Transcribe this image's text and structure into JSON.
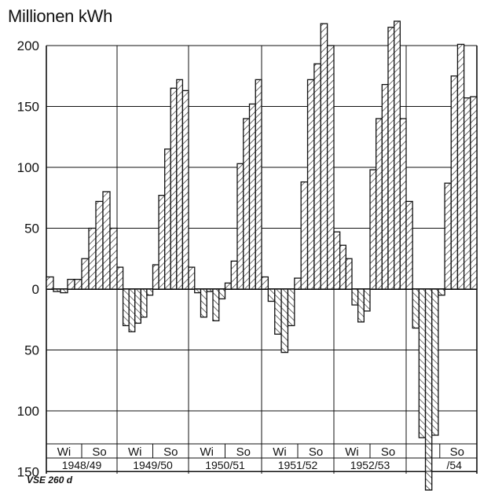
{
  "chart_data": {
    "type": "bar",
    "ylabel": "Millionen kWh",
    "source_note": "VSE 260 d",
    "y_ticks_positive": [
      200,
      150,
      100,
      50,
      0
    ],
    "y_ticks_negative": [
      50,
      100,
      150
    ],
    "ylim": [
      -150,
      200
    ],
    "grid": true,
    "seasons": [
      {
        "wi": "Wi",
        "so": "So",
        "year": "1948/49",
        "values": [
          10,
          -2,
          -3,
          8,
          8,
          25,
          50,
          72,
          80,
          50
        ]
      },
      {
        "wi": "Wi",
        "so": "So",
        "year": "1949/50",
        "values": [
          18,
          -30,
          -35,
          -28,
          -23,
          -5,
          20,
          77,
          115,
          165,
          172,
          163
        ]
      },
      {
        "wi": "Wi",
        "so": "So",
        "year": "1950/51",
        "values": [
          18,
          -3,
          -23,
          -2,
          -26,
          -8,
          5,
          23,
          103,
          140,
          152,
          172
        ]
      },
      {
        "wi": "Wi",
        "so": "So",
        "year": "1951/52",
        "values": [
          10,
          -10,
          -37,
          -52,
          -30,
          9,
          88,
          172,
          185,
          218,
          200
        ]
      },
      {
        "wi": "Wi",
        "so": "So",
        "year": "1952/53",
        "values": [
          47,
          36,
          25,
          -13,
          -27,
          -18,
          98,
          140,
          168,
          215,
          220,
          140
        ]
      },
      {
        "wi": "",
        "so": "So",
        "year": "/54",
        "values": [
          72,
          -32,
          -122,
          -165,
          -120,
          -5,
          87,
          175,
          201,
          157,
          158
        ]
      }
    ]
  }
}
